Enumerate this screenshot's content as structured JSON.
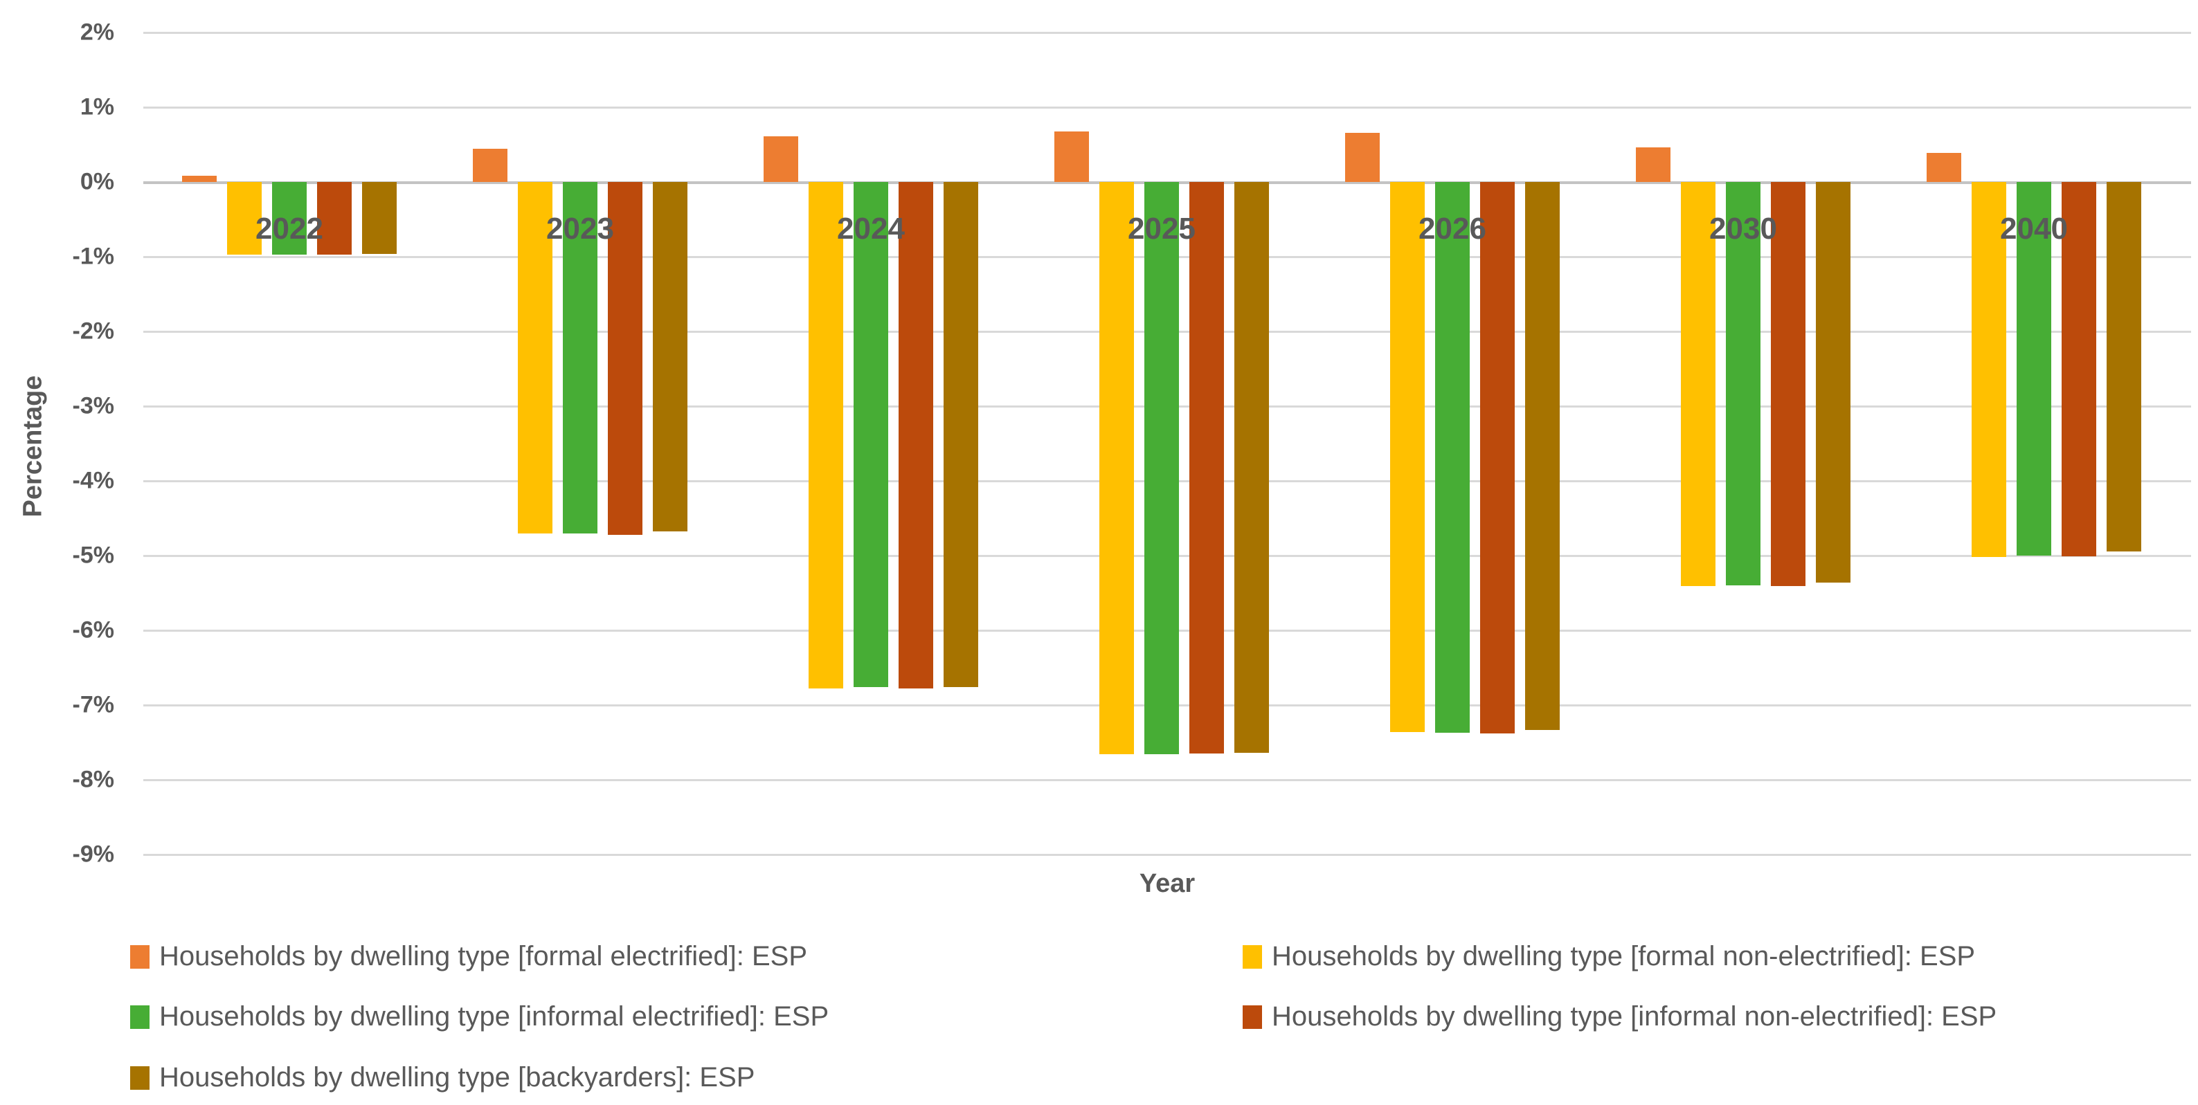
{
  "chart_data": {
    "type": "bar",
    "title": "",
    "xlabel": "Year",
    "ylabel": "Percentage",
    "categories": [
      "2022",
      "2023",
      "2024",
      "2025",
      "2026",
      "2030",
      "2040"
    ],
    "series": [
      {
        "name": "Households by dwelling type [formal electrified]: ESP",
        "color": "#ED7D31",
        "values": [
          0.08,
          0.44,
          0.61,
          0.68,
          0.66,
          0.46,
          0.39
        ]
      },
      {
        "name": "Households by dwelling type [formal non-electrified]: ESP",
        "color": "#FFC000",
        "values": [
          -0.97,
          -4.7,
          -6.78,
          -7.66,
          -7.36,
          -5.41,
          -5.02
        ]
      },
      {
        "name": "Households by dwelling type [informal electrified]: ESP",
        "color": "#47AD35",
        "values": [
          -0.97,
          -4.7,
          -6.76,
          -7.66,
          -7.37,
          -5.4,
          -5.0
        ]
      },
      {
        "name": "Households by dwelling type [informal non-electrified]: ESP",
        "color": "#BC4A0C",
        "values": [
          -0.97,
          -4.72,
          -6.78,
          -7.65,
          -7.38,
          -5.41,
          -5.01
        ]
      },
      {
        "name": "Households by dwelling type [backyarders]: ESP",
        "color": "#A67300",
        "values": [
          -0.96,
          -4.68,
          -6.76,
          -7.64,
          -7.33,
          -5.36,
          -4.94
        ]
      }
    ],
    "y_ticks": [
      {
        "label": "2%",
        "value": 2
      },
      {
        "label": "1%",
        "value": 1
      },
      {
        "label": "0%",
        "value": 0
      },
      {
        "label": "-1%",
        "value": -1
      },
      {
        "label": "-2%",
        "value": -2
      },
      {
        "label": "-3%",
        "value": -3
      },
      {
        "label": "-4%",
        "value": -4
      },
      {
        "label": "-5%",
        "value": -5
      },
      {
        "label": "-6%",
        "value": -6
      },
      {
        "label": "-7%",
        "value": -7
      },
      {
        "label": "-8%",
        "value": -8
      },
      {
        "label": "-9%",
        "value": -9
      }
    ],
    "ylim": [
      -9,
      2
    ],
    "grid": true,
    "legend_position": "bottom",
    "legend_columns": 2
  }
}
